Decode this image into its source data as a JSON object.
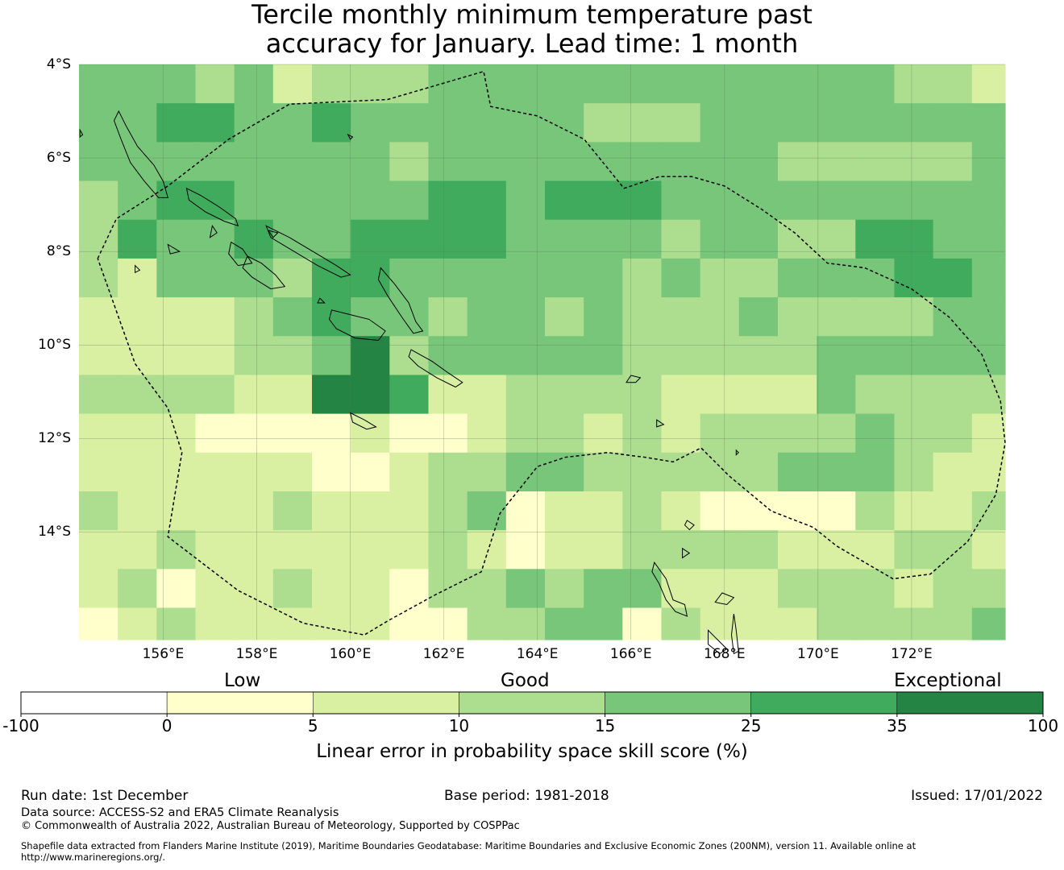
{
  "title": {
    "line1": "Tercile monthly minimum temperature past",
    "line2": "accuracy for January. Lead time: 1 month"
  },
  "map": {
    "region": "Solomon Islands / Vanuatu",
    "lat_labels": [
      "4°S",
      "6°S",
      "8°S",
      "10°S",
      "12°S",
      "14°S"
    ],
    "lon_labels": [
      "156°E",
      "158°E",
      "160°E",
      "162°E",
      "164°E",
      "166°E",
      "168°E",
      "170°E",
      "172°E"
    ],
    "lat_range": [
      -4,
      -16.3
    ],
    "lon_range": [
      154.2,
      174.0
    ],
    "grid_origin": {
      "lon": 154.2,
      "lat": -4.0
    },
    "cell_size_deg": 0.83,
    "grid_columns": 24,
    "grid_rows": 15,
    "skill_grid_class": [
      "444342333444444444444332",
      "445544544444433344444444",
      "444444443444444444333334",
      "345544444554555444444444",
      "354454455554444344335544",
      "324443554444443433444554",
      "222234544344343334333344",
      "222233463444443333344444",
      "333322665223333222243333",
      "222111121123323233334332",
      "222222112334433333444322",
      "322223222341223211113223",
      "223222222321223333222332",
      "231223221334344222333233",
      "123222221133441322233334"
    ],
    "grid_color_on": true,
    "grid_line_color": "#5a7a5a",
    "coastline_color": "#000000",
    "eez_boundary_style": "dashed"
  },
  "colorbar": {
    "category_labels": [
      "Low",
      "Good",
      "Exceptional"
    ],
    "ticks": [
      "-100",
      "0",
      "5",
      "10",
      "15",
      "25",
      "35",
      "100"
    ],
    "colors": [
      "#ffffff",
      "#ffffcc",
      "#d9f0a3",
      "#addd8e",
      "#78c679",
      "#41ab5d",
      "#238443"
    ],
    "title": "Linear error in probability space skill score (%)"
  },
  "footer": {
    "run_date": "Run date: 1st December",
    "base_period": "Base period: 1981-2018",
    "issued": "Issued: 17/01/2022",
    "data_source": "Data source: ACCESS-S2 and ERA5 Climate Reanalysis",
    "copyright": "© Commonwealth of Australia 2022, Australian Bureau of Meteorology, Supported by COSPPac",
    "shapefile_line1": "Shapefile data extracted from Flanders Marine Institute (2019), Maritime Boundaries Geodatabase: Maritime Boundaries and Exclusive Economic Zones (200NM), version 11. Available online at",
    "shapefile_line2": "http://www.marineregions.org/."
  }
}
